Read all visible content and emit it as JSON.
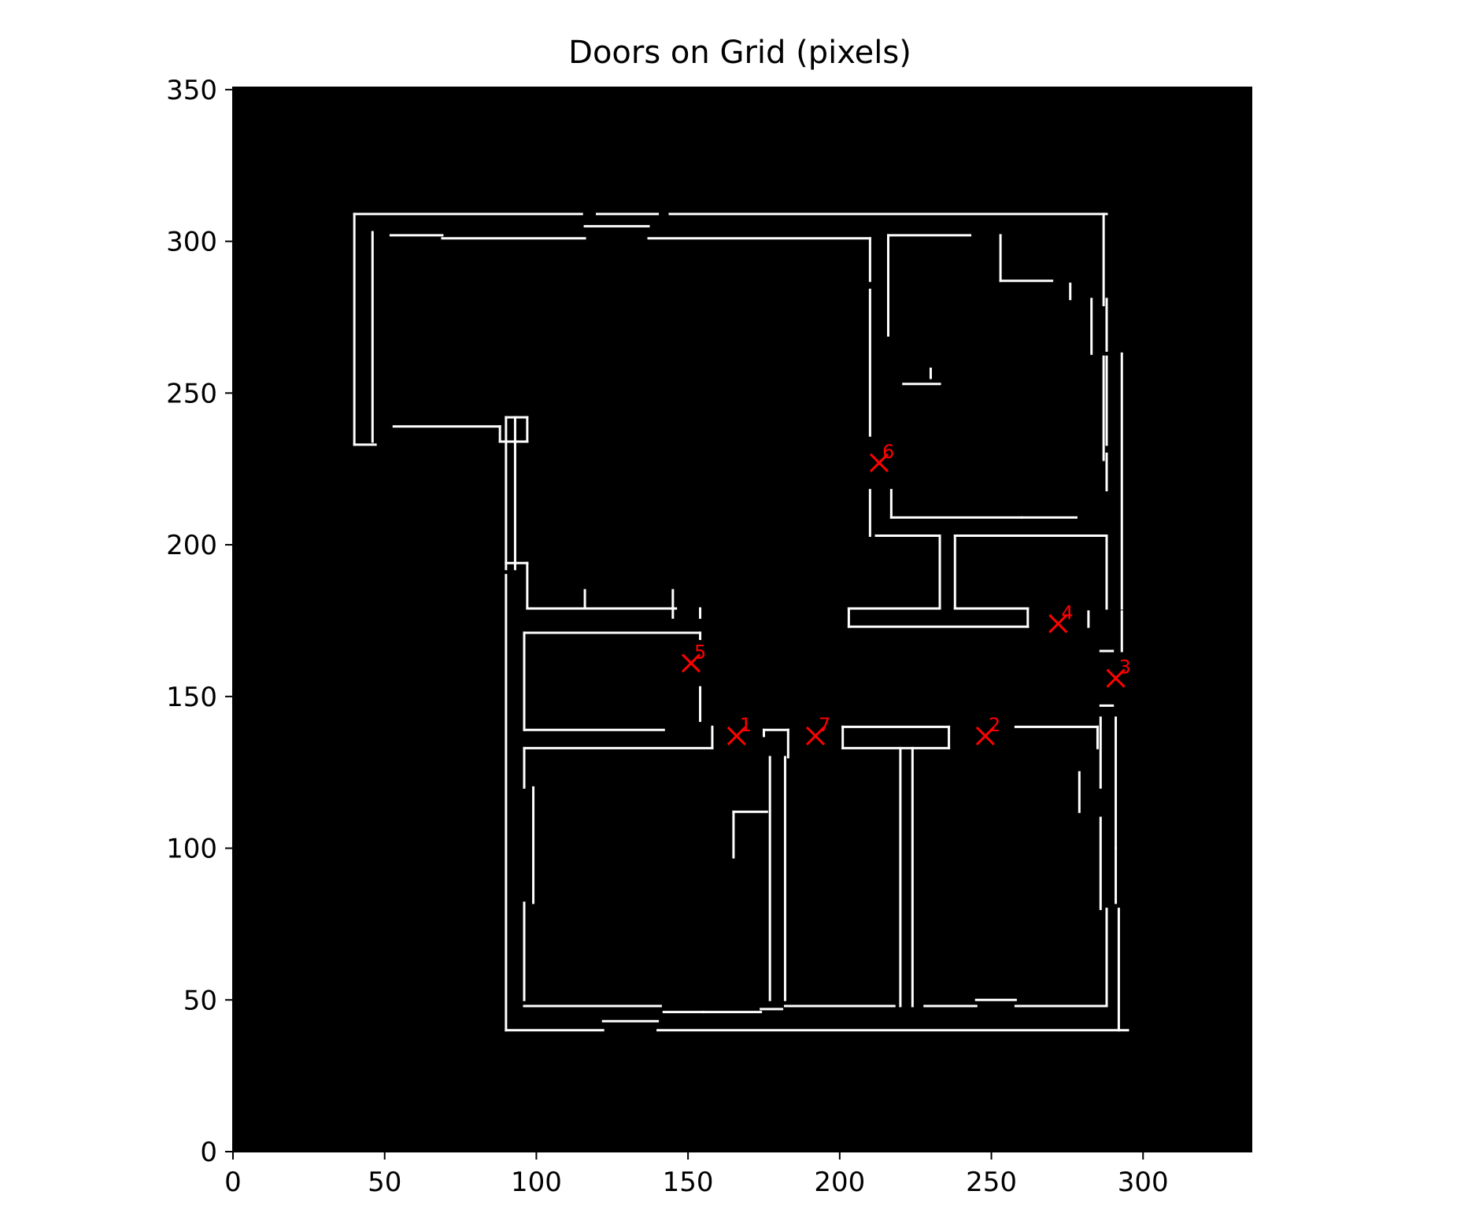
{
  "chart_data": {
    "type": "scatter",
    "title": "Doors on Grid (pixels)",
    "xlabel": "",
    "ylabel": "",
    "xlim": [
      0,
      336
    ],
    "ylim": [
      0,
      351
    ],
    "x_ticks": [
      0,
      50,
      100,
      150,
      200,
      250,
      300
    ],
    "y_ticks": [
      0,
      50,
      100,
      150,
      200,
      250,
      300,
      350
    ],
    "x_tick_labels": [
      "0",
      "50",
      "100",
      "150",
      "200",
      "250",
      "300"
    ],
    "y_tick_labels": [
      "0",
      "50",
      "100",
      "150",
      "200",
      "250",
      "300",
      "350"
    ],
    "background_image": "binary occupancy grid (white walls on black)",
    "grid": false,
    "marker": "x",
    "marker_color": "#ff0000",
    "points": [
      {
        "label": "1",
        "x": 166,
        "y": 137
      },
      {
        "label": "2",
        "x": 248,
        "y": 137
      },
      {
        "label": "3",
        "x": 291,
        "y": 156
      },
      {
        "label": "4",
        "x": 272,
        "y": 174
      },
      {
        "label": "5",
        "x": 151,
        "y": 161
      },
      {
        "label": "6",
        "x": 213,
        "y": 227
      },
      {
        "label": "7",
        "x": 192,
        "y": 137
      }
    ],
    "walls": [
      [
        [
          40,
          309
        ],
        [
          115,
          309
        ]
      ],
      [
        [
          120,
          309
        ],
        [
          140,
          309
        ]
      ],
      [
        [
          144,
          309
        ],
        [
          288,
          309
        ]
      ],
      [
        [
          40,
          309
        ],
        [
          40,
          233
        ]
      ],
      [
        [
          46,
          303
        ],
        [
          46,
          234
        ]
      ],
      [
        [
          40,
          233
        ],
        [
          47,
          233
        ]
      ],
      [
        [
          53,
          239
        ],
        [
          88,
          239
        ]
      ],
      [
        [
          88,
          239
        ],
        [
          88,
          234
        ]
      ],
      [
        [
          88,
          234
        ],
        [
          97,
          234
        ]
      ],
      [
        [
          90,
          242
        ],
        [
          97,
          242
        ]
      ],
      [
        [
          97,
          242
        ],
        [
          97,
          234
        ]
      ],
      [
        [
          52,
          302
        ],
        [
          69,
          302
        ]
      ],
      [
        [
          69,
          301
        ],
        [
          116,
          301
        ]
      ],
      [
        [
          116,
          305
        ],
        [
          137,
          305
        ]
      ],
      [
        [
          137,
          301
        ],
        [
          210,
          301
        ]
      ],
      [
        [
          210,
          301
        ],
        [
          210,
          287
        ]
      ],
      [
        [
          210,
          284
        ],
        [
          210,
          236
        ]
      ],
      [
        [
          210,
          218
        ],
        [
          210,
          203
        ]
      ],
      [
        [
          216,
          302
        ],
        [
          216,
          269
        ]
      ],
      [
        [
          216,
          302
        ],
        [
          243,
          302
        ]
      ],
      [
        [
          253,
          302
        ],
        [
          253,
          287
        ]
      ],
      [
        [
          253,
          287
        ],
        [
          270,
          287
        ]
      ],
      [
        [
          276,
          286
        ],
        [
          276,
          281
        ]
      ],
      [
        [
          283,
          281
        ],
        [
          283,
          263
        ]
      ],
      [
        [
          287,
          309
        ],
        [
          287,
          279
        ]
      ],
      [
        [
          288,
          281
        ],
        [
          288,
          264
        ]
      ],
      [
        [
          287,
          262
        ],
        [
          287,
          228
        ]
      ],
      [
        [
          288,
          262
        ],
        [
          288,
          233
        ]
      ],
      [
        [
          288,
          230
        ],
        [
          288,
          218
        ]
      ],
      [
        [
          217,
          209
        ],
        [
          260,
          209
        ]
      ],
      [
        [
          260,
          209
        ],
        [
          278,
          209
        ]
      ],
      [
        [
          217,
          218
        ],
        [
          217,
          209
        ]
      ],
      [
        [
          221,
          253
        ],
        [
          233,
          253
        ]
      ],
      [
        [
          230,
          258
        ],
        [
          230,
          255
        ]
      ],
      [
        [
          90,
          242
        ],
        [
          90,
          192
        ]
      ],
      [
        [
          93,
          242
        ],
        [
          93,
          192
        ]
      ],
      [
        [
          90,
          194
        ],
        [
          97,
          194
        ]
      ],
      [
        [
          97,
          194
        ],
        [
          97,
          179
        ]
      ],
      [
        [
          97,
          179
        ],
        [
          116,
          179
        ]
      ],
      [
        [
          116,
          185
        ],
        [
          116,
          179
        ]
      ],
      [
        [
          116,
          179
        ],
        [
          140,
          179
        ]
      ],
      [
        [
          140,
          179
        ],
        [
          146,
          179
        ]
      ],
      [
        [
          145,
          185
        ],
        [
          145,
          176
        ]
      ],
      [
        [
          154,
          179
        ],
        [
          154,
          176
        ]
      ],
      [
        [
          90,
          190
        ],
        [
          90,
          40
        ]
      ],
      [
        [
          96,
          171
        ],
        [
          96,
          139
        ]
      ],
      [
        [
          96,
          171
        ],
        [
          154,
          171
        ]
      ],
      [
        [
          154,
          171
        ],
        [
          154,
          169
        ]
      ],
      [
        [
          96,
          139
        ],
        [
          142,
          139
        ]
      ],
      [
        [
          96,
          133
        ],
        [
          158,
          133
        ]
      ],
      [
        [
          158,
          140
        ],
        [
          158,
          133
        ]
      ],
      [
        [
          154,
          153
        ],
        [
          154,
          142
        ]
      ],
      [
        [
          96,
          133
        ],
        [
          96,
          120
        ]
      ],
      [
        [
          99,
          120
        ],
        [
          99,
          82
        ]
      ],
      [
        [
          96,
          82
        ],
        [
          96,
          50
        ]
      ],
      [
        [
          96,
          48
        ],
        [
          122,
          48
        ]
      ],
      [
        [
          122,
          48
        ],
        [
          141,
          48
        ]
      ],
      [
        [
          142,
          46
        ],
        [
          155,
          46
        ]
      ],
      [
        [
          155,
          46
        ],
        [
          174,
          46
        ]
      ],
      [
        [
          174,
          47
        ],
        [
          181,
          47
        ]
      ],
      [
        [
          90,
          40
        ],
        [
          122,
          40
        ]
      ],
      [
        [
          122,
          43
        ],
        [
          140,
          43
        ]
      ],
      [
        [
          140,
          40
        ],
        [
          295,
          40
        ]
      ],
      [
        [
          175,
          139
        ],
        [
          175,
          137
        ]
      ],
      [
        [
          175,
          139
        ],
        [
          183,
          139
        ]
      ],
      [
        [
          183,
          139
        ],
        [
          183,
          130
        ]
      ],
      [
        [
          177,
          130
        ],
        [
          177,
          50
        ]
      ],
      [
        [
          182,
          130
        ],
        [
          182,
          50
        ]
      ],
      [
        [
          182,
          48
        ],
        [
          218,
          48
        ]
      ],
      [
        [
          220,
          48
        ],
        [
          220,
          133
        ]
      ],
      [
        [
          201,
          133
        ],
        [
          224,
          133
        ]
      ],
      [
        [
          201,
          140
        ],
        [
          201,
          133
        ]
      ],
      [
        [
          201,
          140
        ],
        [
          236,
          140
        ]
      ],
      [
        [
          236,
          140
        ],
        [
          236,
          133
        ]
      ],
      [
        [
          224,
          133
        ],
        [
          236,
          133
        ]
      ],
      [
        [
          224,
          133
        ],
        [
          224,
          48
        ]
      ],
      [
        [
          228,
          48
        ],
        [
          245,
          48
        ]
      ],
      [
        [
          245,
          50
        ],
        [
          258,
          50
        ]
      ],
      [
        [
          258,
          48
        ],
        [
          288,
          48
        ]
      ],
      [
        [
          288,
          48
        ],
        [
          288,
          80
        ]
      ],
      [
        [
          292,
          80
        ],
        [
          292,
          40
        ]
      ],
      [
        [
          258,
          140
        ],
        [
          285,
          140
        ]
      ],
      [
        [
          285,
          140
        ],
        [
          285,
          133
        ]
      ],
      [
        [
          279,
          125
        ],
        [
          279,
          112
        ]
      ],
      [
        [
          165,
          112
        ],
        [
          176,
          112
        ]
      ],
      [
        [
          165,
          112
        ],
        [
          165,
          97
        ]
      ],
      [
        [
          212,
          203
        ],
        [
          233,
          203
        ]
      ],
      [
        [
          233,
          203
        ],
        [
          233,
          179
        ]
      ],
      [
        [
          233,
          179
        ],
        [
          203,
          179
        ]
      ],
      [
        [
          203,
          179
        ],
        [
          203,
          173
        ]
      ],
      [
        [
          203,
          173
        ],
        [
          262,
          173
        ]
      ],
      [
        [
          262,
          173
        ],
        [
          262,
          179
        ]
      ],
      [
        [
          238,
          203
        ],
        [
          288,
          203
        ]
      ],
      [
        [
          238,
          203
        ],
        [
          238,
          179
        ]
      ],
      [
        [
          238,
          179
        ],
        [
          262,
          179
        ]
      ],
      [
        [
          288,
          203
        ],
        [
          288,
          179
        ]
      ],
      [
        [
          282,
          178
        ],
        [
          282,
          173
        ]
      ],
      [
        [
          286,
          165
        ],
        [
          290,
          165
        ]
      ],
      [
        [
          293,
          263
        ],
        [
          293,
          179
        ]
      ],
      [
        [
          293,
          178
        ],
        [
          293,
          165
        ]
      ],
      [
        [
          286,
          147
        ],
        [
          290,
          147
        ]
      ],
      [
        [
          291,
          143
        ],
        [
          291,
          100
        ]
      ],
      [
        [
          286,
          143
        ],
        [
          286,
          120
        ]
      ],
      [
        [
          286,
          110
        ],
        [
          286,
          80
        ]
      ],
      [
        [
          291,
          100
        ],
        [
          291,
          82
        ]
      ]
    ]
  }
}
